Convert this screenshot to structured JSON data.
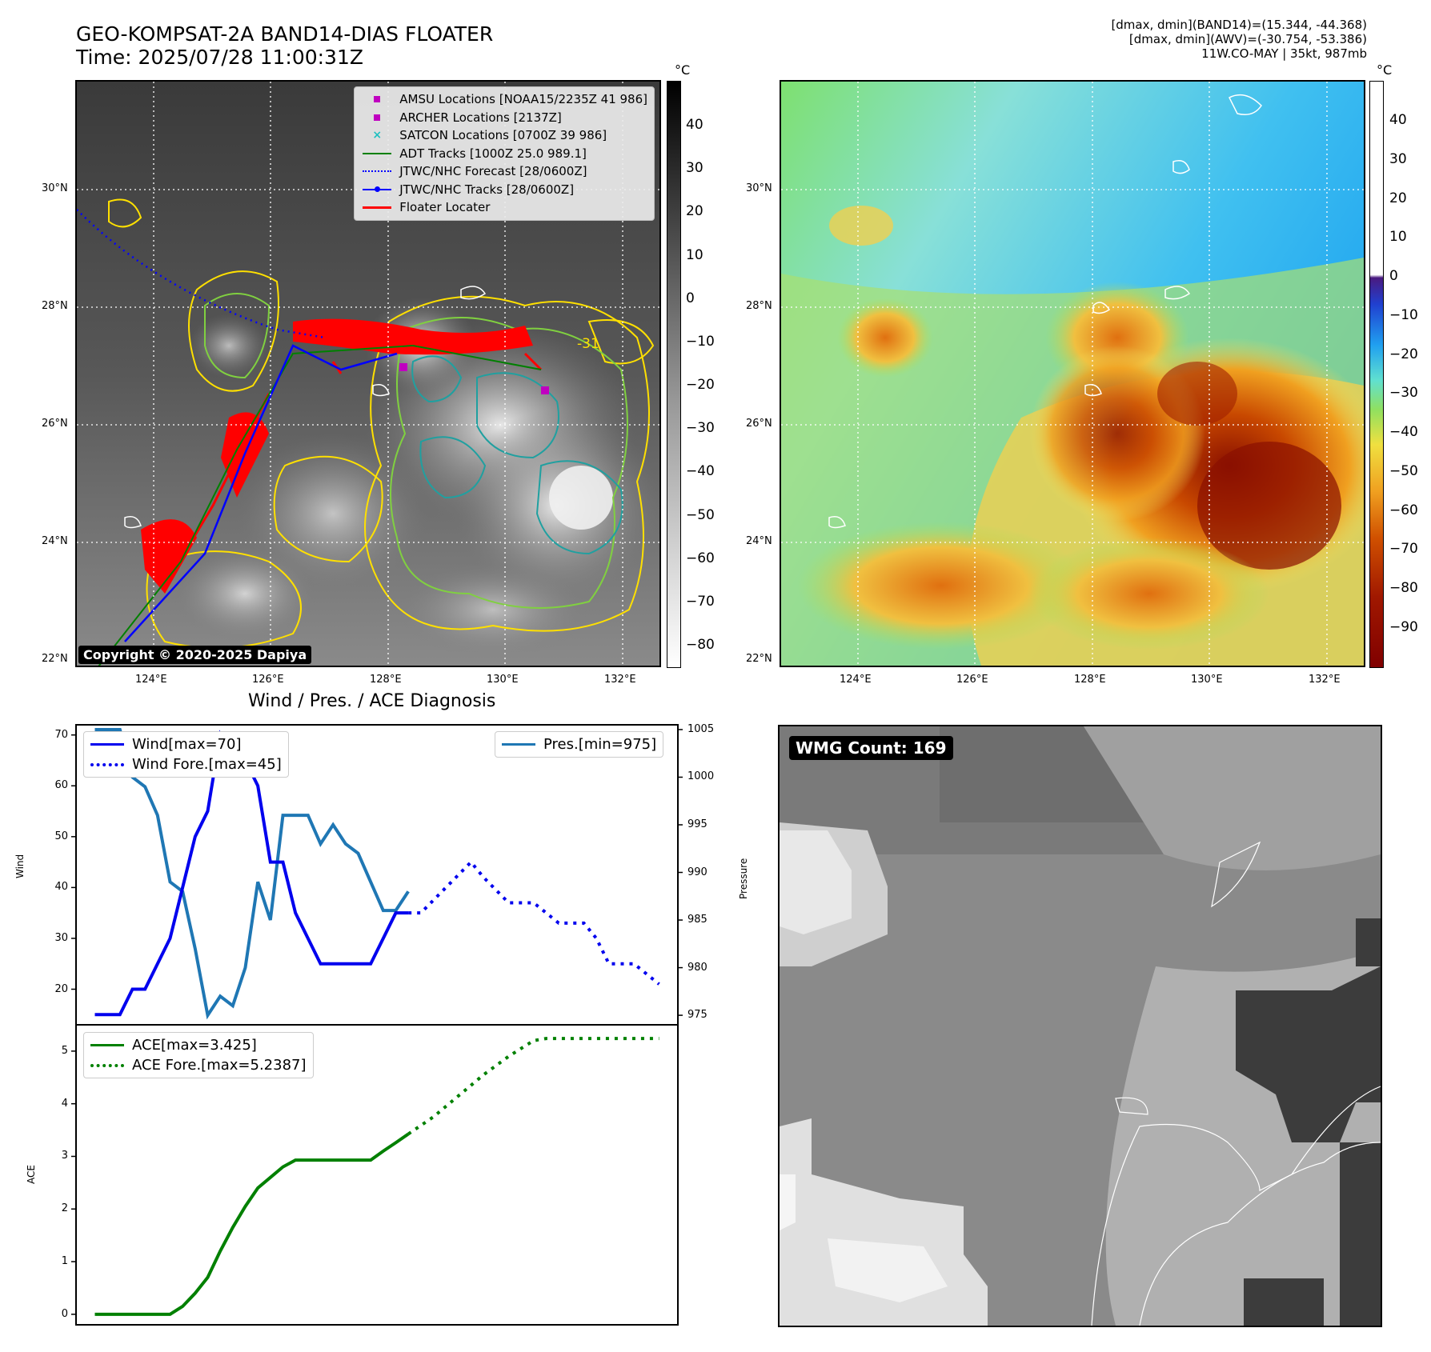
{
  "header": {
    "title_line1": "GEO-KOMPSAT-2A BAND14-DIAS FLOATER",
    "title_line2": "Time: 2025/07/28 11:00:31Z",
    "right_line1": "[dmax, dmin](BAND14)=(15.344, -44.368)",
    "right_line2": "[dmax, dmin](AWV)=(-30.754, -53.386)",
    "right_line3": "11W.CO-MAY | 35kt, 987mb"
  },
  "maps": {
    "lat_labels": [
      "30°N",
      "28°N",
      "26°N",
      "24°N",
      "22°N"
    ],
    "lon_labels": [
      "124°E",
      "126°E",
      "128°E",
      "130°E",
      "132°E"
    ],
    "copyright": "Copyright © 2020-2025 Dapiya",
    "contour_label": "-31",
    "cbar_unit": "°C",
    "cbar1_ticks": [
      "40",
      "30",
      "20",
      "10",
      "0",
      "−10",
      "−20",
      "−30",
      "−40",
      "−50",
      "−60",
      "−70",
      "−80"
    ],
    "cbar2_ticks": [
      "40",
      "30",
      "20",
      "10",
      "0",
      "−10",
      "−20",
      "−30",
      "−40",
      "−50",
      "−60",
      "−70",
      "−80",
      "−90"
    ],
    "legend": [
      {
        "label": "AMSU Locations [NOAA15/2235Z 41 986]",
        "symbol": "square",
        "color": "#c000c0"
      },
      {
        "label": "ARCHER Locations [2137Z]",
        "symbol": "square",
        "color": "#c000c0"
      },
      {
        "label": "SATCON Locations [0700Z 39 986]",
        "symbol": "x",
        "color": "#20c0c0"
      },
      {
        "label": "ADT Tracks [1000Z 25.0 989.1]",
        "symbol": "line",
        "color": "#008000"
      },
      {
        "label": "JTWC/NHC Forecast [28/0600Z]",
        "symbol": "dotted",
        "color": "#0000ff"
      },
      {
        "label": "JTWC/NHC Tracks [28/0600Z]",
        "symbol": "dotline",
        "color": "#0000ff"
      },
      {
        "label": "Floater Locater",
        "symbol": "line",
        "color": "#ff0000"
      }
    ]
  },
  "diagnosis": {
    "title": "Wind / Pres. / ACE Diagnosis",
    "wind_legend": "Wind[max=70]",
    "wind_fore_legend": "Wind Fore.[max=45]",
    "pres_legend": "Pres.[min=975]",
    "ace_legend": "ACE[max=3.425]",
    "ace_fore_legend": "ACE Fore.[max=5.2387]",
    "wind_axis_label": "Wind",
    "pres_axis_label": "Pressure",
    "ace_axis_label": "ACE",
    "wmg_label": "WMG Count: 169"
  },
  "chart_data": [
    {
      "type": "line",
      "title": "Wind / Pres. / ACE Diagnosis",
      "ylabel": "Wind",
      "ylim": [
        13,
        72
      ],
      "yticks": [
        20,
        30,
        40,
        50,
        60,
        70
      ],
      "y2label": "Pressure",
      "y2lim": [
        974,
        1005.5
      ],
      "y2ticks": [
        975,
        980,
        985,
        990,
        995,
        1000,
        1005
      ],
      "series": [
        {
          "name": "Wind[max=70]",
          "x": [
            0,
            1,
            2,
            3,
            4,
            5,
            6,
            7,
            8,
            9,
            10,
            11,
            12,
            13,
            14,
            15,
            16,
            17,
            18,
            19,
            20,
            21,
            22,
            23,
            24,
            25
          ],
          "values": [
            15,
            15,
            15,
            20,
            20,
            25,
            30,
            40,
            50,
            55,
            70,
            65,
            65,
            60,
            45,
            45,
            35,
            30,
            25,
            25,
            25,
            25,
            25,
            30,
            35,
            35
          ]
        },
        {
          "name": "Wind Fore.[max=45]",
          "x": [
            25,
            26,
            28,
            30,
            31,
            33,
            35,
            36,
            37,
            39,
            40,
            41,
            43,
            44,
            45
          ],
          "values": [
            35,
            35,
            40,
            45,
            42,
            37,
            37,
            35,
            33,
            33,
            30,
            25,
            25,
            23,
            21
          ]
        },
        {
          "name": "Pres.[min=975]",
          "x": [
            0,
            1,
            2,
            3,
            4,
            5,
            6,
            7,
            8,
            9,
            10,
            11,
            12,
            13,
            14,
            15,
            16,
            17,
            18,
            19,
            20,
            21,
            22,
            23,
            24,
            25
          ],
          "values": [
            1005,
            1005,
            1005,
            1000,
            999,
            996,
            989,
            988,
            982,
            975,
            977,
            976,
            980,
            989,
            985,
            996,
            996,
            996,
            993,
            995,
            993,
            992,
            989,
            986,
            986,
            988
          ]
        }
      ]
    },
    {
      "type": "line",
      "ylabel": "ACE",
      "ylim": [
        -0.2,
        5.5
      ],
      "yticks": [
        0,
        1,
        2,
        3,
        4,
        5
      ],
      "series": [
        {
          "name": "ACE[max=3.425]",
          "x": [
            0,
            1,
            2,
            3,
            4,
            5,
            6,
            7,
            8,
            9,
            10,
            11,
            12,
            13,
            14,
            15,
            16,
            17,
            18,
            19,
            20,
            21,
            22,
            23,
            24,
            25
          ],
          "values": [
            0,
            0,
            0,
            0,
            0,
            0,
            0,
            0.15,
            0.4,
            0.7,
            1.2,
            1.65,
            2.05,
            2.4,
            2.6,
            2.8,
            2.93,
            2.93,
            2.93,
            2.93,
            2.93,
            2.93,
            2.93,
            3.1,
            3.26,
            3.425
          ]
        },
        {
          "name": "ACE Fore.[max=5.2387]",
          "x": [
            25,
            27,
            29,
            31,
            33,
            35,
            36,
            40,
            45
          ],
          "values": [
            3.425,
            3.75,
            4.15,
            4.55,
            4.9,
            5.2,
            5.24,
            5.24,
            5.24
          ]
        }
      ]
    }
  ]
}
